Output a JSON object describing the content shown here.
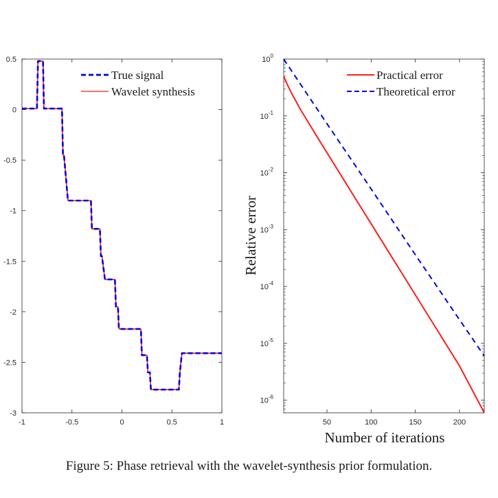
{
  "chart_data": [
    {
      "type": "line",
      "title": "",
      "xlabel": "",
      "ylabel": "",
      "xlim": [
        -1,
        1
      ],
      "ylim": [
        -3,
        0.5
      ],
      "xticks": [
        "-1",
        "-0.5",
        "0",
        "0.5",
        "1"
      ],
      "yticks": [
        "0.5",
        "0",
        "-0.5",
        "-1",
        "-1.5",
        "-2",
        "-2.5",
        "-3"
      ],
      "grid": false,
      "legend_position": "top-right",
      "series": [
        {
          "name": "True signal",
          "style": "dashed",
          "color": "#0000e0",
          "x": [
            -1,
            -0.85,
            -0.84,
            -0.79,
            -0.78,
            -0.6,
            -0.59,
            -0.58,
            -0.54,
            -0.53,
            -0.31,
            -0.3,
            -0.29,
            -0.26,
            -0.25,
            -0.22,
            -0.21,
            -0.2,
            -0.17,
            -0.16,
            -0.08,
            -0.07,
            -0.06,
            -0.04,
            -0.03,
            0.19,
            0.2,
            0.21,
            0.24,
            0.25,
            0.26,
            0.28,
            0.29,
            0.56,
            0.57,
            0.58,
            0.6,
            0.61,
            1.0
          ],
          "y": [
            0.01,
            0.01,
            0.48,
            0.48,
            0.01,
            0.01,
            -0.45,
            -0.45,
            -0.9,
            -0.9,
            -0.9,
            -1.18,
            -1.18,
            -1.18,
            -1.18,
            -1.18,
            -1.45,
            -1.45,
            -1.68,
            -1.68,
            -1.68,
            -1.68,
            -1.95,
            -1.95,
            -2.17,
            -2.17,
            -2.43,
            -2.43,
            -2.43,
            -2.43,
            -2.6,
            -2.6,
            -2.77,
            -2.77,
            -2.77,
            -2.6,
            -2.41,
            -2.41,
            -2.41
          ]
        },
        {
          "name": "Wavelet synthesis",
          "style": "solid",
          "color": "#ff1a1a",
          "x": [
            -1,
            -0.85,
            -0.84,
            -0.79,
            -0.78,
            -0.6,
            -0.59,
            -0.58,
            -0.54,
            -0.53,
            -0.31,
            -0.3,
            -0.29,
            -0.26,
            -0.25,
            -0.22,
            -0.21,
            -0.2,
            -0.17,
            -0.16,
            -0.08,
            -0.07,
            -0.06,
            -0.04,
            -0.03,
            0.19,
            0.2,
            0.21,
            0.24,
            0.25,
            0.26,
            0.28,
            0.29,
            0.56,
            0.57,
            0.58,
            0.6,
            0.61,
            1.0
          ],
          "y": [
            0.01,
            0.01,
            0.48,
            0.48,
            0.01,
            0.01,
            -0.45,
            -0.45,
            -0.9,
            -0.9,
            -0.9,
            -1.18,
            -1.18,
            -1.18,
            -1.18,
            -1.18,
            -1.45,
            -1.45,
            -1.68,
            -1.68,
            -1.68,
            -1.68,
            -1.95,
            -1.95,
            -2.17,
            -2.17,
            -2.43,
            -2.43,
            -2.43,
            -2.43,
            -2.6,
            -2.6,
            -2.77,
            -2.77,
            -2.77,
            -2.6,
            -2.41,
            -2.41,
            -2.41
          ]
        }
      ]
    },
    {
      "type": "line",
      "title": "",
      "xlabel": "Number of iterations",
      "ylabel": "Relative error",
      "xlim": [
        1,
        228
      ],
      "ylim": [
        6e-07,
        1
      ],
      "yscale": "log",
      "xticks": [
        "50",
        "100",
        "150",
        "200"
      ],
      "yticks": [
        {
          "base": "10",
          "exp": "0"
        },
        {
          "base": "10",
          "exp": "-1"
        },
        {
          "base": "10",
          "exp": "-2"
        },
        {
          "base": "10",
          "exp": "-3"
        },
        {
          "base": "10",
          "exp": "-4"
        },
        {
          "base": "10",
          "exp": "-5"
        },
        {
          "base": "10",
          "exp": "-6"
        }
      ],
      "grid": false,
      "legend_position": "top-right",
      "series": [
        {
          "name": "Practical error",
          "style": "solid",
          "color": "#ff1a1a",
          "x": [
            1,
            5,
            10,
            15,
            20,
            30,
            40,
            60,
            80,
            100,
            120,
            140,
            160,
            180,
            200,
            228
          ],
          "y": [
            0.5,
            0.36,
            0.25,
            0.18,
            0.13,
            0.072,
            0.04,
            0.0127,
            0.004,
            0.00127,
            0.0004,
            0.000127,
            4e-05,
            1.27e-05,
            4e-06,
            6e-07
          ]
        },
        {
          "name": "Theoretical error",
          "style": "dashed",
          "color": "#0000e0",
          "x": [
            1,
            50,
            100,
            150,
            200,
            228
          ],
          "y": [
            1.0,
            0.073,
            0.0052,
            0.00036,
            2.6e-05,
            6e-06
          ]
        }
      ]
    }
  ],
  "caption": "Figure 5: Phase retrieval with the wavelet-synthesis prior formulation."
}
